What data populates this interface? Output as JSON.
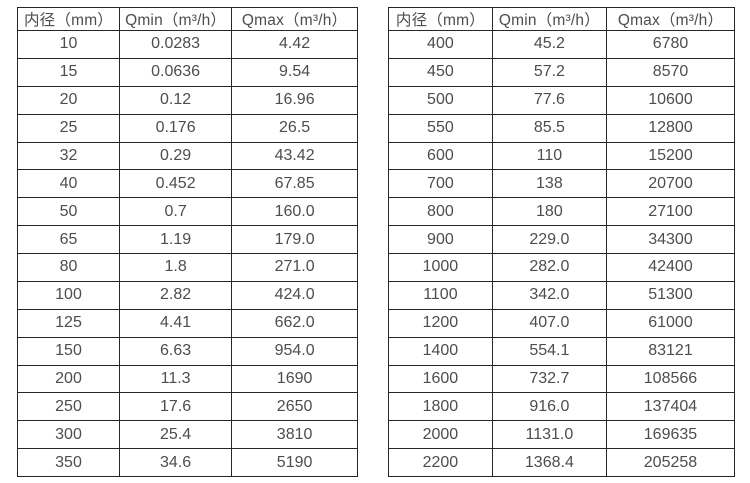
{
  "page": {
    "background": "#ffffff",
    "border_color": "#262626",
    "text_color": "#4d4d4d"
  },
  "tables": [
    {
      "name": "flow-spec-table-small-diameters",
      "headers": [
        "内径（mm）",
        "Qmin（m³/h）",
        "Qmax（m³/h）"
      ],
      "rows": [
        [
          "10",
          "0.0283",
          "4.42"
        ],
        [
          "15",
          "0.0636",
          "9.54"
        ],
        [
          "20",
          "0.12",
          "16.96"
        ],
        [
          "25",
          "0.176",
          "26.5"
        ],
        [
          "32",
          "0.29",
          "43.42"
        ],
        [
          "40",
          "0.452",
          "67.85"
        ],
        [
          "50",
          "0.7",
          "160.0"
        ],
        [
          "65",
          "1.19",
          "179.0"
        ],
        [
          "80",
          "1.8",
          "271.0"
        ],
        [
          "100",
          "2.82",
          "424.0"
        ],
        [
          "125",
          "4.41",
          "662.0"
        ],
        [
          "150",
          "6.63",
          "954.0"
        ],
        [
          "200",
          "11.3",
          "1690"
        ],
        [
          "250",
          "17.6",
          "2650"
        ],
        [
          "300",
          "25.4",
          "3810"
        ],
        [
          "350",
          "34.6",
          "5190"
        ]
      ]
    },
    {
      "name": "flow-spec-table-large-diameters",
      "headers": [
        "内径（mm）",
        "Qmin（m³/h）",
        "Qmax（m³/h）"
      ],
      "rows": [
        [
          "400",
          "45.2",
          "6780"
        ],
        [
          "450",
          "57.2",
          "8570"
        ],
        [
          "500",
          "77.6",
          "10600"
        ],
        [
          "550",
          "85.5",
          "12800"
        ],
        [
          "600",
          "110",
          "15200"
        ],
        [
          "700",
          "138",
          "20700"
        ],
        [
          "800",
          "180",
          "27100"
        ],
        [
          "900",
          "229.0",
          "34300"
        ],
        [
          "1000",
          "282.0",
          "42400"
        ],
        [
          "1100",
          "342.0",
          "51300"
        ],
        [
          "1200",
          "407.0",
          "61000"
        ],
        [
          "1400",
          "554.1",
          "83121"
        ],
        [
          "1600",
          "732.7",
          "108566"
        ],
        [
          "1800",
          "916.0",
          "137404"
        ],
        [
          "2000",
          "1131.0",
          "169635"
        ],
        [
          "2200",
          "1368.4",
          "205258"
        ]
      ]
    }
  ]
}
